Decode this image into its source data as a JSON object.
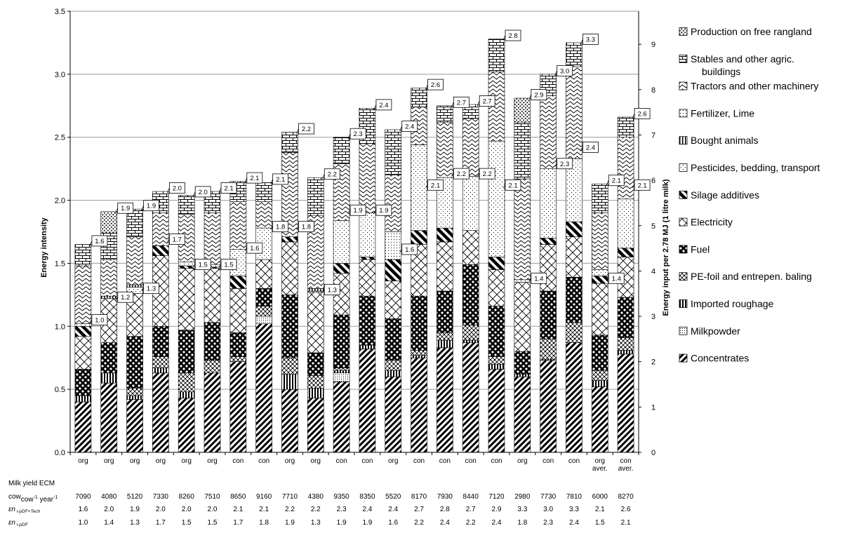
{
  "chart_data": {
    "type": "bar",
    "stacked": true,
    "ylabel": "Energy intensity",
    "y2label": "Energy input per 2.78 MJ (1 litre milk)",
    "ylim": [
      0,
      3.5
    ],
    "yticks": [
      "0.0",
      "0.5",
      "1.0",
      "1.5",
      "2.0",
      "2.5",
      "3.0",
      "3.5"
    ],
    "y2lim": [
      0,
      9.73
    ],
    "y2ticks": [
      "0",
      "1",
      "2",
      "3",
      "4",
      "5",
      "6",
      "7",
      "8",
      "9"
    ],
    "grid": true,
    "legend_position": "right",
    "categories": [
      "org",
      "org",
      "org",
      "org",
      "org",
      "org",
      "con",
      "con",
      "org",
      "org",
      "con",
      "con",
      "org",
      "con",
      "con",
      "con",
      "con",
      "org",
      "con",
      "con",
      "org aver.",
      "con aver."
    ],
    "series": [
      {
        "name": "Concentrates",
        "pattern": "diagonal-stripes",
        "values": [
          0.4,
          0.55,
          0.42,
          0.63,
          0.43,
          0.63,
          0.72,
          1.02,
          0.5,
          0.43,
          0.56,
          0.82,
          0.6,
          0.75,
          0.83,
          0.87,
          0.66,
          0.6,
          0.73,
          0.87,
          0.52,
          0.78
        ]
      },
      {
        "name": "Milkpowder",
        "pattern": "dots",
        "values": [
          0.0,
          0.0,
          0.0,
          0.0,
          0.0,
          0.0,
          0.0,
          0.06,
          0.0,
          0.0,
          0.07,
          0.0,
          0.0,
          0.0,
          0.0,
          0.0,
          0.0,
          0.0,
          0.0,
          0.0,
          0.0,
          0.0
        ]
      },
      {
        "name": "Imported roughage",
        "pattern": "vertical-stripes",
        "values": [
          0.05,
          0.08,
          0.03,
          0.04,
          0.05,
          0.0,
          0.0,
          0.0,
          0.12,
          0.08,
          0.02,
          0.03,
          0.05,
          0.02,
          0.06,
          0.02,
          0.04,
          0.02,
          0.01,
          0.0,
          0.05,
          0.03
        ]
      },
      {
        "name": "PE-foil and entrepen. baling",
        "pattern": "checker",
        "values": [
          0.0,
          0.0,
          0.06,
          0.09,
          0.15,
          0.1,
          0.04,
          0.08,
          0.13,
          0.1,
          0.02,
          0.0,
          0.08,
          0.04,
          0.06,
          0.12,
          0.06,
          0.0,
          0.16,
          0.16,
          0.08,
          0.1
        ]
      },
      {
        "name": "Fuel",
        "pattern": "dense-dots",
        "values": [
          0.21,
          0.24,
          0.41,
          0.24,
          0.34,
          0.3,
          0.19,
          0.14,
          0.5,
          0.18,
          0.42,
          0.39,
          0.33,
          0.43,
          0.33,
          0.48,
          0.4,
          0.18,
          0.38,
          0.36,
          0.28,
          0.32
        ]
      },
      {
        "name": "Electricity",
        "pattern": "diamond",
        "values": [
          0.26,
          0.35,
          0.34,
          0.56,
          0.49,
          0.43,
          0.35,
          0.23,
          0.42,
          0.48,
          0.33,
          0.29,
          0.3,
          0.41,
          0.39,
          0.27,
          0.29,
          0.55,
          0.37,
          0.32,
          0.41,
          0.32
        ]
      },
      {
        "name": "Silage additives",
        "pattern": "bold-stripes",
        "values": [
          0.08,
          0.0,
          0.0,
          0.08,
          0.02,
          0.01,
          0.1,
          0.0,
          0.04,
          0.0,
          0.08,
          0.02,
          0.17,
          0.11,
          0.11,
          0.0,
          0.1,
          0.0,
          0.05,
          0.12,
          0.06,
          0.07
        ]
      },
      {
        "name": "Pesticides, bedding, transport",
        "pattern": "speckle",
        "values": [
          0.02,
          0.0,
          0.05,
          0.0,
          0.03,
          0.02,
          0.21,
          0.25,
          0.0,
          0.01,
          0.34,
          0.35,
          0.0,
          0.68,
          0.4,
          0.43,
          0.92,
          0.02,
          0.55,
          0.5,
          0.05,
          0.39
        ]
      },
      {
        "name": "Bought animals",
        "pattern": "vertical-bars",
        "values": [
          0.0,
          0.02,
          0.02,
          0.0,
          0.0,
          0.0,
          0.0,
          0.0,
          0.0,
          0.02,
          0.0,
          0.0,
          0.0,
          0.0,
          0.0,
          0.0,
          0.0,
          0.0,
          0.0,
          0.0,
          0.0,
          0.0
        ]
      },
      {
        "name": "Fertilizer, Lime",
        "pattern": "fine-dots",
        "values": [
          0.0,
          0.0,
          0.0,
          0.0,
          0.0,
          0.0,
          0.0,
          0.0,
          0.0,
          0.0,
          0.0,
          0.0,
          0.22,
          0.0,
          0.0,
          0.0,
          0.0,
          0.0,
          0.0,
          0.0,
          0.0,
          0.0
        ]
      },
      {
        "name": "Tractors and other machinery",
        "pattern": "waves",
        "values": [
          0.46,
          0.29,
          0.38,
          0.26,
          0.38,
          0.41,
          0.38,
          0.21,
          0.67,
          0.58,
          0.45,
          0.55,
          0.45,
          0.3,
          0.44,
          0.46,
          0.55,
          0.8,
          0.58,
          0.73,
          0.45,
          0.49
        ]
      },
      {
        "name": "Stables and other agric. buildings",
        "pattern": "bricks",
        "values": [
          0.17,
          0.21,
          0.22,
          0.17,
          0.15,
          0.17,
          0.16,
          0.15,
          0.16,
          0.3,
          0.21,
          0.28,
          0.36,
          0.15,
          0.13,
          0.11,
          0.26,
          0.45,
          0.17,
          0.19,
          0.23,
          0.16
        ]
      },
      {
        "name": "Production on free rangland",
        "pattern": "circles",
        "values": [
          0.0,
          0.17,
          0.0,
          0.0,
          0.0,
          0.0,
          0.0,
          0.0,
          0.0,
          0.0,
          0.0,
          0.0,
          0.0,
          0.0,
          0.0,
          0.0,
          0.0,
          0.19,
          0.0,
          0.0,
          0.0,
          0.0
        ]
      }
    ],
    "bar_labels_top": [
      "1.6",
      "1.9",
      "1.9",
      "2.0",
      "2.0",
      "2.1",
      "2.1",
      "2.1",
      "2.2",
      "2.2",
      "2.3",
      "2.4",
      "2.4",
      "2.6",
      "2.7",
      "2.7",
      "2.8",
      "2.9",
      "3.0",
      "3.3",
      "2.1",
      "2.6"
    ],
    "bar_labels_mid": [
      "1.0",
      "1.2",
      "1.3",
      "1.7",
      "1.5",
      "1.5",
      "1.6",
      "1.8",
      "1.8",
      "1.3",
      "1.9",
      "1.9",
      "1.6",
      "2.1",
      "2.2",
      "2.2",
      "2.1",
      "1.4",
      "2.3",
      "2.4",
      "1.4",
      "2.1"
    ],
    "bar_labels_mid_values": [
      1.04,
      1.22,
      1.29,
      1.68,
      1.48,
      1.48,
      1.61,
      1.78,
      1.78,
      1.28,
      1.91,
      1.91,
      1.6,
      2.11,
      2.2,
      2.2,
      2.11,
      1.37,
      2.28,
      2.41,
      1.37,
      2.11
    ],
    "table": {
      "row_labels": [
        "Milk yield ECM",
        "cow",
        "-1",
        " year",
        "-1",
        "εn",
        "i-pDF+Tech",
        "εn",
        "i-pDF"
      ],
      "milk_yield": [
        "7090",
        "4080",
        "5120",
        "7330",
        "8260",
        "7510",
        "8650",
        "9160",
        "7710",
        "4380",
        "9350",
        "8350",
        "5520",
        "8170",
        "7930",
        "8440",
        "7120",
        "2980",
        "7730",
        "7810",
        "6000",
        "8270"
      ],
      "en_tech": [
        "1.6",
        "2.0",
        "1.9",
        "2.0",
        "2.0",
        "2.0",
        "2.1",
        "2.1",
        "2.2",
        "2.2",
        "2.3",
        "2.4",
        "2.4",
        "2.7",
        "2.8",
        "2.7",
        "2.9",
        "3.3",
        "3.0",
        "3.3",
        "2.1",
        "2.6"
      ],
      "en_pdf": [
        "1.0",
        "1.4",
        "1.3",
        "1.7",
        "1.5",
        "1.5",
        "1.7",
        "1.8",
        "1.9",
        "1.3",
        "1.9",
        "1.9",
        "1.6",
        "2.2",
        "2.4",
        "2.2",
        "2.4",
        "1.8",
        "2.3",
        "2.4",
        "1.5",
        "2.1"
      ]
    }
  }
}
